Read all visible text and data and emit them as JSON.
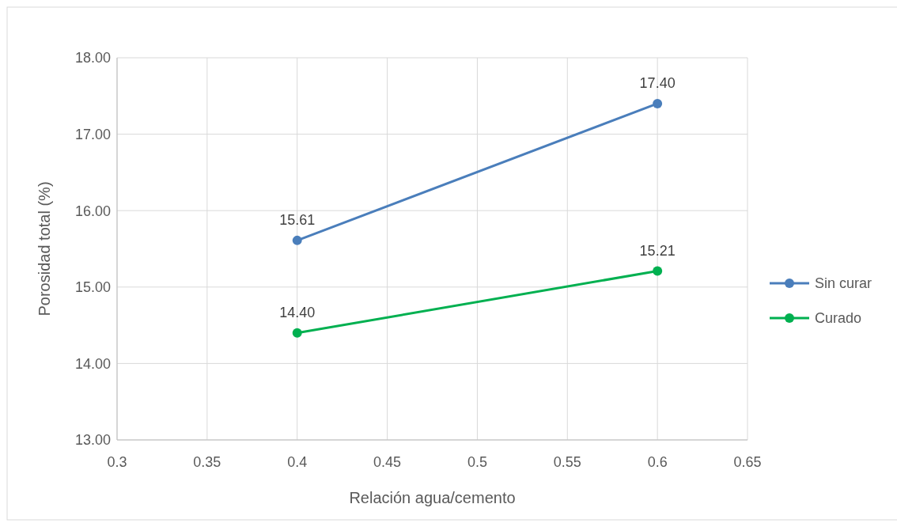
{
  "chart_data": {
    "type": "line",
    "xlabel": "Relación agua/cemento",
    "ylabel": "Porosidad total (%)",
    "x": [
      0.4,
      0.6
    ],
    "series": [
      {
        "name": "Sin curar",
        "color": "#4a7ebb",
        "values": [
          15.61,
          17.4
        ],
        "value_labels": [
          "15.61",
          "17.40"
        ]
      },
      {
        "name": "Curado",
        "color": "#00b050",
        "values": [
          14.4,
          15.21
        ],
        "value_labels": [
          "14.40",
          "15.21"
        ]
      }
    ],
    "xlim": [
      0.3,
      0.65
    ],
    "xticks": [
      0.3,
      0.35,
      0.4,
      0.45,
      0.5,
      0.55,
      0.6,
      0.65
    ],
    "ylim": [
      13,
      18
    ],
    "yticks": [
      {
        "value": 13,
        "label": "13.00"
      },
      {
        "value": 14,
        "label": "14.00"
      },
      {
        "value": 15,
        "label": "15.00"
      },
      {
        "value": 16,
        "label": "16.00"
      },
      {
        "value": 17,
        "label": "17.00"
      },
      {
        "value": 18,
        "label": "18.00"
      }
    ],
    "grid": true,
    "legend": "right",
    "marker": "circle",
    "line_style": "solid"
  }
}
